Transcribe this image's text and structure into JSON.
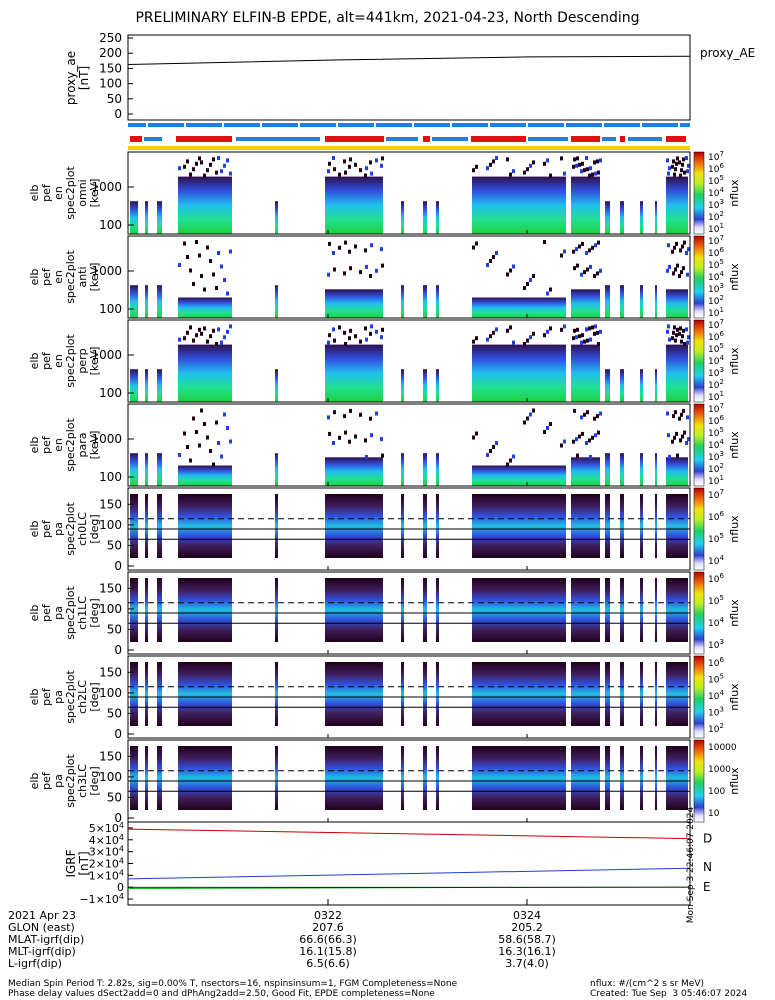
{
  "title": "PRELIMINARY ELFIN-B EPDE, alt=441km, 2021-04-23, North Descending",
  "proxy_ae": {
    "ylabel": [
      "proxy_ae",
      "[nT]"
    ],
    "yticks": [
      "250",
      "200",
      "150",
      "100",
      "50",
      "0"
    ],
    "legend": "proxy_AE"
  },
  "energy_panels": [
    {
      "ylabel": [
        "elb",
        "pef",
        "en",
        "spec2plot",
        "omni",
        "[keV]"
      ],
      "yticks": [
        "1000",
        "100"
      ],
      "cticks": [
        "10^7",
        "10^6",
        "10^5",
        "10^4",
        "10^3",
        "10^2",
        "10^1"
      ],
      "cunit": "nflux"
    },
    {
      "ylabel": [
        "elb",
        "pef",
        "en",
        "spec2plot",
        "anti",
        "[keV]"
      ],
      "yticks": [
        "1000",
        "100"
      ],
      "cticks": [
        "10^7",
        "10^6",
        "10^5",
        "10^4",
        "10^3",
        "10^2",
        "10^1"
      ],
      "cunit": "nflux"
    },
    {
      "ylabel": [
        "elb",
        "pef",
        "en",
        "spec2plot",
        "perp",
        "[keV]"
      ],
      "yticks": [
        "1000",
        "100"
      ],
      "cticks": [
        "10^7",
        "10^6",
        "10^5",
        "10^4",
        "10^3",
        "10^2",
        "10^1"
      ],
      "cunit": "nflux"
    },
    {
      "ylabel": [
        "elb",
        "pef",
        "en",
        "spec2plot",
        "para",
        "[keV]"
      ],
      "yticks": [
        "1000",
        "100"
      ],
      "cticks": [
        "10^7",
        "10^6",
        "10^5",
        "10^4",
        "10^3",
        "10^2",
        "10^1"
      ],
      "cunit": "nflux"
    }
  ],
  "pitch_panels": [
    {
      "ylabel": [
        "elb",
        "pef",
        "pa",
        "spec2plot",
        "ch0LC",
        "[deg]"
      ],
      "yticks": [
        "150",
        "100",
        "50",
        "0"
      ],
      "cticks": [
        "10^7",
        "10^6",
        "10^5",
        "10^4"
      ],
      "cunit": "nflux"
    },
    {
      "ylabel": [
        "elb",
        "pef",
        "pa",
        "spec2plot",
        "ch1LC",
        "[deg]"
      ],
      "yticks": [
        "150",
        "100",
        "50",
        "0"
      ],
      "cticks": [
        "10^6",
        "10^5",
        "10^4",
        "10^3"
      ],
      "cunit": "nflux"
    },
    {
      "ylabel": [
        "elb",
        "pef",
        "pa",
        "spec2plot",
        "ch2LC",
        "[deg]"
      ],
      "yticks": [
        "150",
        "100",
        "50",
        "0"
      ],
      "cticks": [
        "10^6",
        "10^5",
        "10^4",
        "10^3",
        "10^2"
      ],
      "cunit": "nflux"
    },
    {
      "ylabel": [
        "elb",
        "pef",
        "pa",
        "spec2plot",
        "ch3LC",
        "[deg]"
      ],
      "yticks": [
        "150",
        "100",
        "50",
        "0"
      ],
      "cticks": [
        "10000",
        "1000",
        "100",
        "10"
      ],
      "cunit": "nflux"
    }
  ],
  "igrf": {
    "ylabel": [
      "IGRF",
      "[nT]"
    ],
    "yticks": [
      "5×10^4",
      "4×10^4",
      "3×10^4",
      "2×10^4",
      "1×10^4",
      "0",
      "−1×10^4"
    ],
    "legend": [
      "D",
      "N",
      "E"
    ]
  },
  "side_stamp": "Mon Sep  3 22:46:07 2024",
  "orbit_table": {
    "labels": [
      "2021 Apr 23",
      "GLON (east)",
      "MLAT-igrf(dip)",
      "MLT-igrf(dip)",
      "L-igrf(dip)"
    ],
    "col1": [
      "0322",
      "207.6",
      "66.6(66.3)",
      "16.1(15.8)",
      "6.5(6.6)"
    ],
    "col2": [
      "0324",
      "205.2",
      "58.6(58.7)",
      "16.3(16.1)",
      "3.7(4.0)"
    ]
  },
  "footer": {
    "left1": "Median Spin Period T: 2.82s, sig=0.00% T, nsectors=16, nspinsinsum=1, FGM Completeness=None",
    "left2": "Phase delay values dSect2add=0 and dPhAng2add=2.50, Good Fit, EPDE completeness=None",
    "right1": "nflux: #/(cm^2 s sr MeV)",
    "right2": "Created: Tue Sep  3 05:46:07 2024"
  },
  "colors": {
    "d": "#cc0000",
    "n": "#1f3fd0",
    "e": "#00aa00",
    "stripe_red": "#e01010",
    "stripe_blue": "#2080e0",
    "stripe_yellow": "#f0d000"
  },
  "chart_data": {
    "type": "heatmap",
    "x_ticks": [
      "0322",
      "0324"
    ],
    "proxy_ae_series": {
      "name": "proxy_AE",
      "x": [
        "start",
        "0322",
        "0324",
        "end"
      ],
      "values": [
        163,
        178,
        188,
        190
      ],
      "ylim": [
        0,
        260
      ]
    },
    "igrf_series": [
      {
        "name": "D",
        "values_start": 49000,
        "values_end": 41000
      },
      {
        "name": "N",
        "values_start": 7000,
        "values_end": 16000
      },
      {
        "name": "E",
        "values_start": -1000,
        "values_end": 200
      }
    ],
    "igrf_ylim": [
      -15000,
      55000
    ],
    "pitch_reference_lines": {
      "dashed": 115,
      "solid": [
        90,
        65
      ]
    }
  }
}
